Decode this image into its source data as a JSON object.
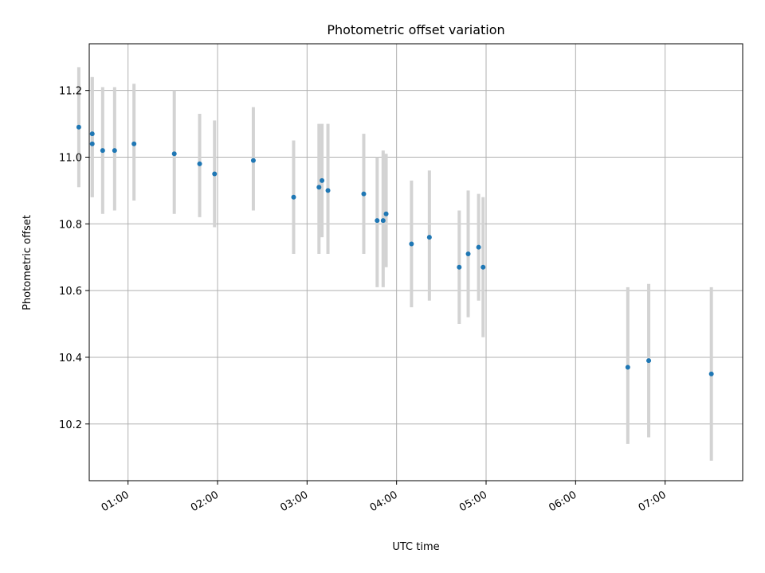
{
  "chart_data": {
    "type": "scatter",
    "title": "Photometric offset variation",
    "xlabel": "UTC time",
    "ylabel": "Photometric offset",
    "x_is_time": true,
    "xlim": [
      "00:34",
      "07:52"
    ],
    "ylim": [
      10.03,
      11.34
    ],
    "grid": true,
    "x_ticks": [
      "01:00",
      "02:00",
      "03:00",
      "04:00",
      "05:00",
      "06:00",
      "07:00"
    ],
    "y_ticks": [
      10.2,
      10.4,
      10.6,
      10.8,
      11.0,
      11.2
    ],
    "y_tick_labels": [
      "10.2",
      "10.4",
      "10.6",
      "10.8",
      "11.0",
      "11.2"
    ],
    "colors": {
      "point": "#1f77b4",
      "errorbar": "#d3d3d3",
      "grid": "#b0b0b0"
    },
    "points": [
      {
        "time": "00:27",
        "y": 11.09,
        "err_low": 10.91,
        "err_high": 11.27
      },
      {
        "time": "00:36",
        "y": 11.07,
        "err_low": 10.88,
        "err_high": 11.24
      },
      {
        "time": "00:36",
        "y": 11.04,
        "err_low": 10.88,
        "err_high": 11.24
      },
      {
        "time": "00:43",
        "y": 11.02,
        "err_low": 10.83,
        "err_high": 11.21
      },
      {
        "time": "00:51",
        "y": 11.02,
        "err_low": 10.84,
        "err_high": 11.21
      },
      {
        "time": "01:04",
        "y": 11.04,
        "err_low": 10.87,
        "err_high": 11.22
      },
      {
        "time": "01:31",
        "y": 11.01,
        "err_low": 10.83,
        "err_high": 11.2
      },
      {
        "time": "01:48",
        "y": 10.98,
        "err_low": 10.82,
        "err_high": 11.13
      },
      {
        "time": "01:58",
        "y": 10.95,
        "err_low": 10.79,
        "err_high": 11.11
      },
      {
        "time": "02:24",
        "y": 10.99,
        "err_low": 10.84,
        "err_high": 11.15
      },
      {
        "time": "02:51",
        "y": 10.88,
        "err_low": 10.71,
        "err_high": 11.05
      },
      {
        "time": "03:08",
        "y": 10.91,
        "err_low": 10.71,
        "err_high": 11.1
      },
      {
        "time": "03:10",
        "y": 10.93,
        "err_low": 10.76,
        "err_high": 11.1
      },
      {
        "time": "03:14",
        "y": 10.9,
        "err_low": 10.71,
        "err_high": 11.1
      },
      {
        "time": "03:38",
        "y": 10.89,
        "err_low": 10.71,
        "err_high": 11.07
      },
      {
        "time": "03:47",
        "y": 10.81,
        "err_low": 10.61,
        "err_high": 11.0
      },
      {
        "time": "03:51",
        "y": 10.81,
        "err_low": 10.61,
        "err_high": 11.02
      },
      {
        "time": "03:53",
        "y": 10.83,
        "err_low": 10.67,
        "err_high": 11.01
      },
      {
        "time": "04:10",
        "y": 10.74,
        "err_low": 10.55,
        "err_high": 10.93
      },
      {
        "time": "04:22",
        "y": 10.76,
        "err_low": 10.57,
        "err_high": 10.96
      },
      {
        "time": "04:42",
        "y": 10.67,
        "err_low": 10.5,
        "err_high": 10.84
      },
      {
        "time": "04:48",
        "y": 10.71,
        "err_low": 10.52,
        "err_high": 10.9
      },
      {
        "time": "04:55",
        "y": 10.73,
        "err_low": 10.57,
        "err_high": 10.89
      },
      {
        "time": "04:58",
        "y": 10.67,
        "err_low": 10.46,
        "err_high": 10.88
      },
      {
        "time": "06:35",
        "y": 10.37,
        "err_low": 10.14,
        "err_high": 10.61
      },
      {
        "time": "06:49",
        "y": 10.39,
        "err_low": 10.16,
        "err_high": 10.62
      },
      {
        "time": "07:31",
        "y": 10.35,
        "err_low": 10.09,
        "err_high": 10.61
      }
    ]
  }
}
